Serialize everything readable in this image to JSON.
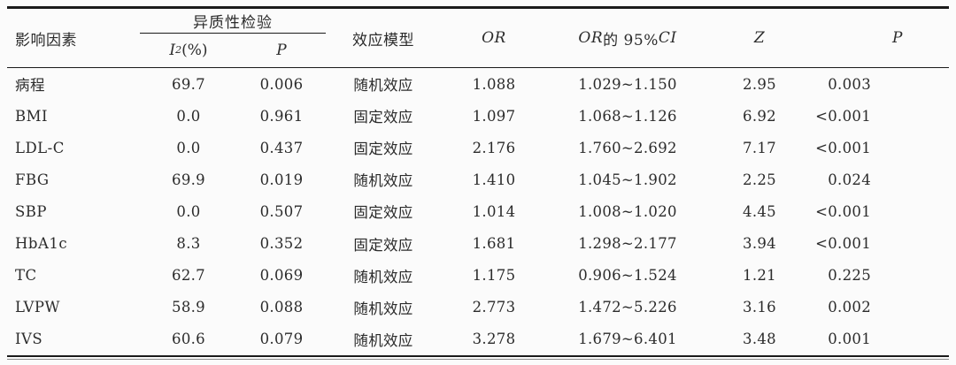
{
  "colors": {
    "background": "#fbfbfb",
    "text": "#2b2b2b",
    "rule": "#1a1a1a"
  },
  "table": {
    "header": {
      "factor": "影响因素",
      "heterogeneity": {
        "title": "异质性检验",
        "i2_base": "I",
        "i2_sup": "2",
        "i2_unit": "(%)",
        "p": "P"
      },
      "model": "效应模型",
      "or": "OR",
      "ci_or": "OR",
      "ci_mid": " 的 95%",
      "ci_suffix": "CI",
      "z": "Z",
      "p": "P"
    },
    "rows": [
      {
        "factor": "病程",
        "i2": "69.7",
        "p_het": "0.006",
        "model": "随机效应",
        "or": "1.088",
        "ci": "1.029~1.150",
        "z": "2.95",
        "p": "0.003"
      },
      {
        "factor": "BMI",
        "i2": "0.0",
        "p_het": "0.961",
        "model": "固定效应",
        "or": "1.097",
        "ci": "1.068~1.126",
        "z": "6.92",
        "p": "<0.001"
      },
      {
        "factor": "LDL-C",
        "i2": "0.0",
        "p_het": "0.437",
        "model": "固定效应",
        "or": "2.176",
        "ci": "1.760~2.692",
        "z": "7.17",
        "p": "<0.001"
      },
      {
        "factor": "FBG",
        "i2": "69.9",
        "p_het": "0.019",
        "model": "随机效应",
        "or": "1.410",
        "ci": "1.045~1.902",
        "z": "2.25",
        "p": "0.024"
      },
      {
        "factor": "SBP",
        "i2": "0.0",
        "p_het": "0.507",
        "model": "固定效应",
        "or": "1.014",
        "ci": "1.008~1.020",
        "z": "4.45",
        "p": "<0.001"
      },
      {
        "factor": "HbA1c",
        "i2": "8.3",
        "p_het": "0.352",
        "model": "固定效应",
        "or": "1.681",
        "ci": "1.298~2.177",
        "z": "3.94",
        "p": "<0.001"
      },
      {
        "factor": "TC",
        "i2": "62.7",
        "p_het": "0.069",
        "model": "随机效应",
        "or": "1.175",
        "ci": "0.906~1.524",
        "z": "1.21",
        "p": "0.225"
      },
      {
        "factor": "LVPW",
        "i2": "58.9",
        "p_het": "0.088",
        "model": "随机效应",
        "or": "2.773",
        "ci": "1.472~5.226",
        "z": "3.16",
        "p": "0.002"
      },
      {
        "factor": "IVS",
        "i2": "60.6",
        "p_het": "0.079",
        "model": "随机效应",
        "or": "3.278",
        "ci": "1.679~6.401",
        "z": "3.48",
        "p": "0.001"
      }
    ]
  }
}
